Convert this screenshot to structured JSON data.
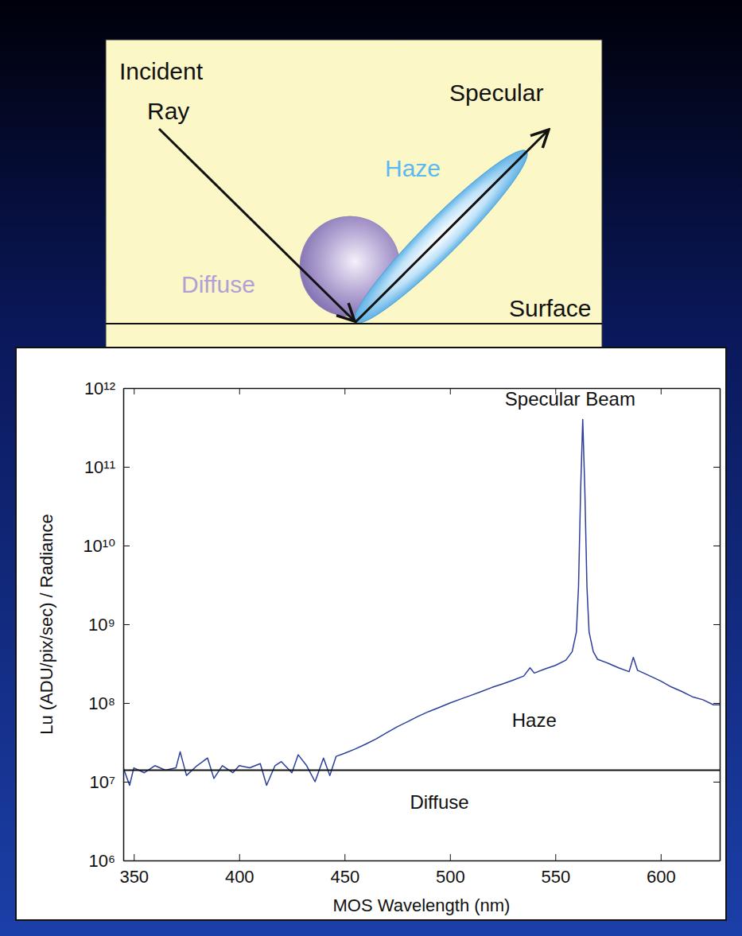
{
  "diagram": {
    "incident_ray": "Incident Ray",
    "specular": "Specular",
    "haze": "Haze",
    "diffuse": "Diffuse",
    "surface": "Surface"
  },
  "chart_data": {
    "type": "line",
    "x_label": "MOS Wavelength (nm)",
    "y_label": "Lu (ADU/pix/sec) / Radiance",
    "log": "y",
    "color": "#2b3f9a",
    "xlim": [
      345,
      628
    ],
    "xticks": [
      350,
      400,
      450,
      500,
      550,
      600
    ],
    "ylim": [
      1000000.0,
      1000000000000.0
    ],
    "yticks": [
      {
        "value": 1000000.0,
        "label": "10⁶"
      },
      {
        "value": 10000000.0,
        "label": "10⁷"
      },
      {
        "value": 100000000.0,
        "label": "10⁸"
      },
      {
        "value": 1000000000.0,
        "label": "10⁹"
      },
      {
        "value": 10000000000.0,
        "label": "10¹⁰"
      },
      {
        "value": 100000000000.0,
        "label": "10¹¹"
      },
      {
        "value": 1000000000000.0,
        "label": "10¹²"
      }
    ],
    "x": [
      345,
      348,
      350,
      355,
      360,
      365,
      370,
      372,
      375,
      380,
      385,
      388,
      392,
      397,
      400,
      405,
      410,
      413,
      417,
      420,
      425,
      428,
      432,
      436,
      440,
      443,
      446,
      450,
      455,
      460,
      465,
      470,
      475,
      480,
      485,
      490,
      495,
      500,
      505,
      510,
      515,
      520,
      525,
      530,
      535,
      538,
      540,
      545,
      550,
      555,
      558,
      560,
      561,
      562,
      563,
      564,
      565,
      566,
      568,
      570,
      575,
      580,
      585,
      587,
      589,
      595,
      600,
      605,
      610,
      615,
      620,
      625,
      628
    ],
    "values": [
      15000000.0,
      9000000.0,
      15000000.0,
      13000000.0,
      16000000.0,
      14000000.0,
      15000000.0,
      24000000.0,
      12000000.0,
      16000000.0,
      20000000.0,
      11000000.0,
      16000000.0,
      13000000.0,
      16000000.0,
      15000000.0,
      17000000.0,
      9000000.0,
      16000000.0,
      18000000.0,
      13000000.0,
      22000000.0,
      16000000.0,
      10000000.0,
      20000000.0,
      12000000.0,
      21000000.0,
      23000000.0,
      26000000.0,
      30000000.0,
      35000000.0,
      42000000.0,
      50000000.0,
      58000000.0,
      68000000.0,
      78000000.0,
      88000000.0,
      100000000.0,
      112000000.0,
      125000000.0,
      140000000.0,
      158000000.0,
      175000000.0,
      195000000.0,
      220000000.0,
      280000000.0,
      240000000.0,
      270000000.0,
      300000000.0,
      350000000.0,
      450000000.0,
      800000000.0,
      3000000000.0,
      50000000000.0,
      400000000000.0,
      50000000000.0,
      3000000000.0,
      800000000.0,
      450000000.0,
      360000000.0,
      320000000.0,
      280000000.0,
      250000000.0,
      380000000.0,
      260000000.0,
      220000000.0,
      190000000.0,
      160000000.0,
      140000000.0,
      120000000.0,
      110000000.0,
      95000000.0,
      95000000.0
    ],
    "reference_line": 14000000.0,
    "annotations": [
      {
        "text": "Specular Beam",
        "x": 557,
        "y": 600000000000.0
      },
      {
        "text": "Haze",
        "x": 540,
        "y": 50000000.0
      },
      {
        "text": "Diffuse",
        "x": 495,
        "y": 4500000.0
      }
    ]
  }
}
